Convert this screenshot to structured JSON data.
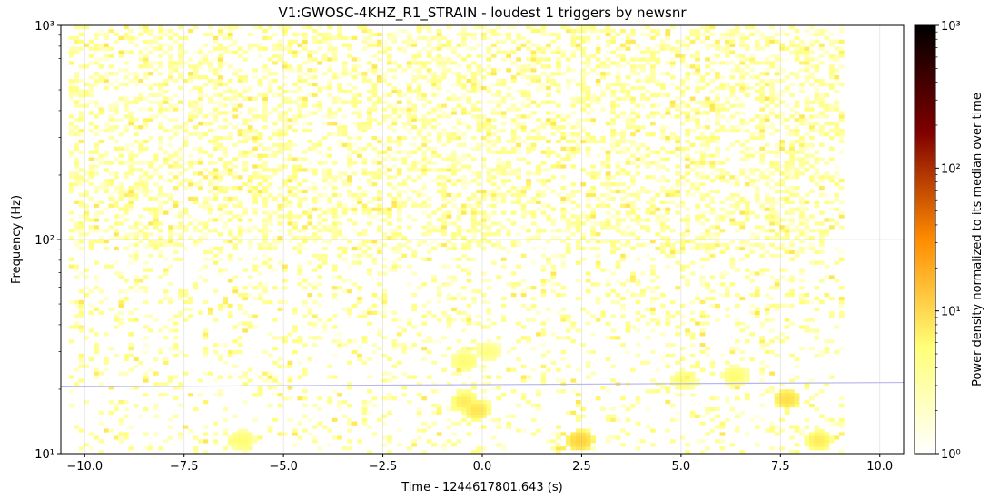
{
  "chart_data": {
    "type": "heatmap",
    "title": "V1:GWOSC-4KHZ_R1_STRAIN - loudest 1 triggers by newsnr",
    "xlabel": "Time - 1244617801.643 (s)",
    "ylabel": "Frequency (Hz)",
    "colorbar_label": "Power density normalized to its median over time",
    "xlim": [
      -10.6,
      10.6
    ],
    "ylim": [
      10,
      1000
    ],
    "y_scale": "log",
    "x_ticks": [
      -10,
      -7.5,
      -5,
      -2.5,
      0,
      2.5,
      5,
      7.5,
      10
    ],
    "x_tick_labels": [
      "−10.0",
      "−7.5",
      "−5.0",
      "−2.5",
      "0.0",
      "2.5",
      "5.0",
      "7.5",
      "10.0"
    ],
    "y_ticks": [
      10,
      100,
      1000
    ],
    "y_tick_labels": [
      "10¹",
      "10²",
      "10³"
    ],
    "colorbar_ticks": [
      1,
      10,
      100,
      1000
    ],
    "colorbar_tick_labels": [
      "10⁰",
      "10¹",
      "10²",
      "10³"
    ],
    "colorbar_range": [
      1,
      1000
    ],
    "colorbar_scale": "log",
    "colormap": "afmhot_r",
    "data_time_range": [
      -10.4,
      9.1
    ],
    "grid": true,
    "hot_spots": [
      {
        "t": -0.5,
        "f": 17.5,
        "power": 8
      },
      {
        "t": -0.2,
        "f": 16,
        "power": 9
      },
      {
        "t": 2.4,
        "f": 11.5,
        "power": 12
      },
      {
        "t": 7.6,
        "f": 18,
        "power": 10
      },
      {
        "t": 8.4,
        "f": 11.5,
        "power": 8
      },
      {
        "t": -6.1,
        "f": 11.5,
        "power": 6
      },
      {
        "t": -0.5,
        "f": 27,
        "power": 6
      },
      {
        "t": 0.1,
        "f": 30,
        "power": 5
      },
      {
        "t": 5.0,
        "f": 22,
        "power": 6
      },
      {
        "t": 6.3,
        "f": 23,
        "power": 6
      }
    ],
    "trigger_track": {
      "t": [
        -10.6,
        10.6
      ],
      "f": [
        20.5,
        21.5
      ],
      "color": "#b8b8f0"
    }
  }
}
